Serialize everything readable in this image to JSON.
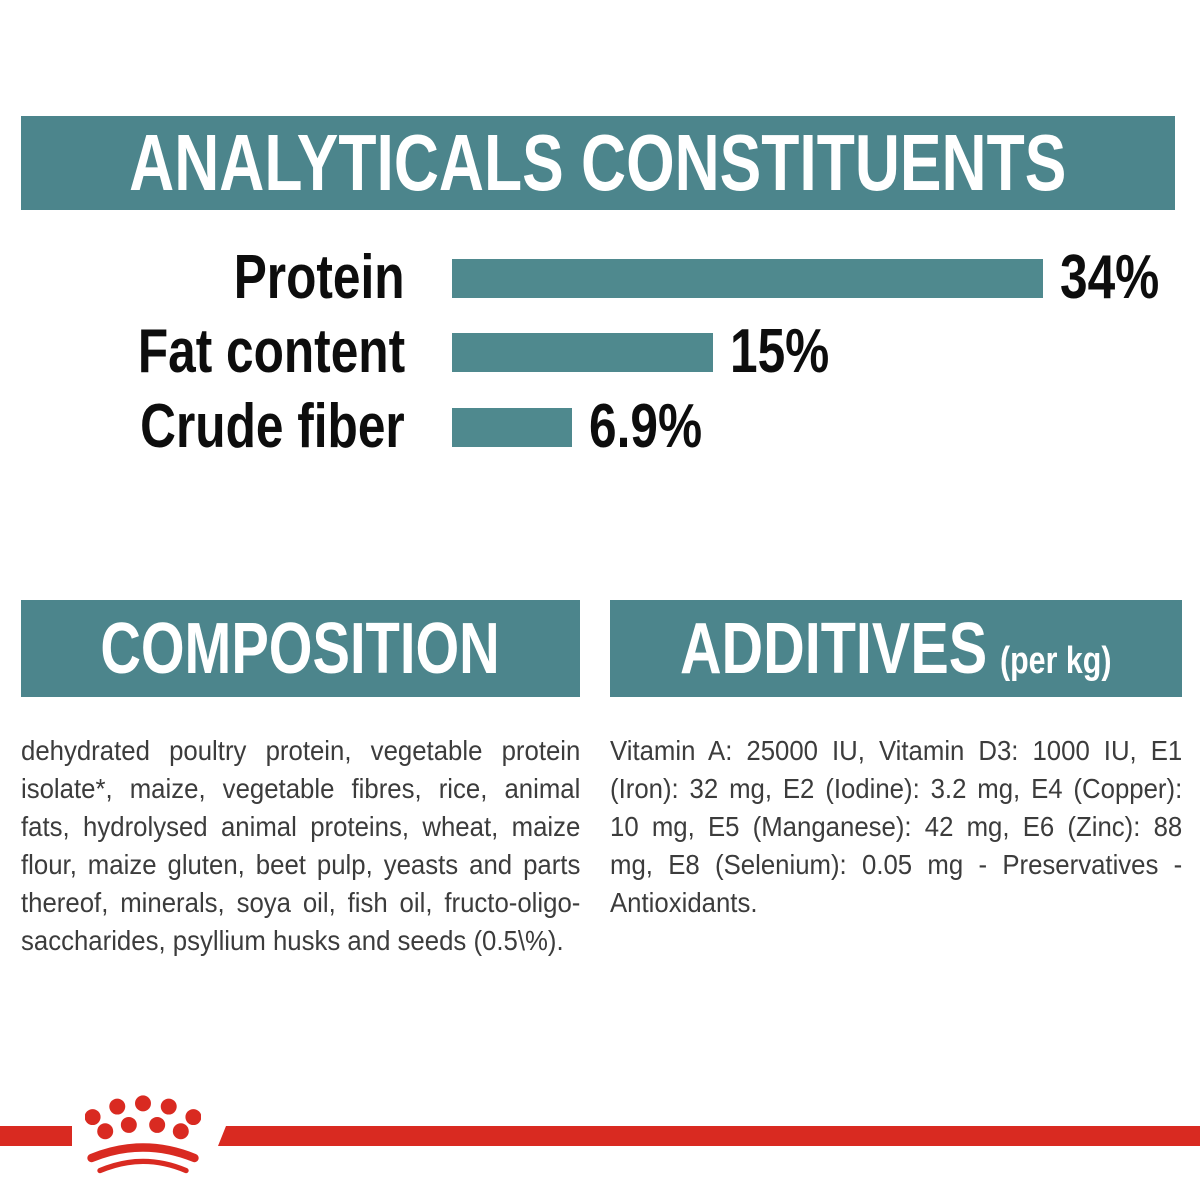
{
  "colors": {
    "teal_banner": "#4c858c",
    "teal_bar": "#4f898e",
    "brand_red": "#d92a21",
    "body_text": "#3c3c3c",
    "label_text": "#0d0d0d"
  },
  "analyticals": {
    "title": "ANALYTICALS CONSTITUENTS",
    "rows": [
      {
        "label": "Protein",
        "value": 34,
        "value_label": "34%"
      },
      {
        "label": "Fat content",
        "value": 15,
        "value_label": "15%"
      },
      {
        "label": "Crude fiber",
        "value": 6.9,
        "value_label": "6.9%"
      }
    ]
  },
  "chart_data": {
    "type": "bar",
    "orientation": "horizontal",
    "title": "ANALYTICALS CONSTITUENTS",
    "categories": [
      "Protein",
      "Fat content",
      "Crude fiber"
    ],
    "values": [
      34,
      15,
      6.9
    ],
    "value_labels": [
      "34%",
      "15%",
      "6.9%"
    ],
    "bar_color": "#4f898e",
    "xlim": [
      0,
      40
    ],
    "grid": false,
    "legend": false
  },
  "composition": {
    "title": "COMPOSITION",
    "body": "dehydrated poultry protein, vegetable protein isolate*, maize, vegetable fibres, rice, animal fats, hydrolysed animal proteins, wheat, maize flour, maize gluten, beet pulp, yeasts and parts thereof, minerals, soya oil, fish oil, fructo-oligo-saccharides, psyllium husks and seeds (0.5\\%)."
  },
  "additives": {
    "title": "ADDITIVES",
    "unit": "(per kg)",
    "body": "Vitamin A: 25000 IU, Vitamin D3: 1000 IU, E1 (Iron): 32 mg, E2 (Iodine): 3.2 mg, E4 (Copper): 10 mg, E5 (Manganese): 42 mg, E6 (Zinc): 88 mg, E8 (Selenium): 0.05 mg - Preservatives - Antioxidants."
  },
  "footer": {
    "brand_logo": "royal-canin-crown"
  }
}
